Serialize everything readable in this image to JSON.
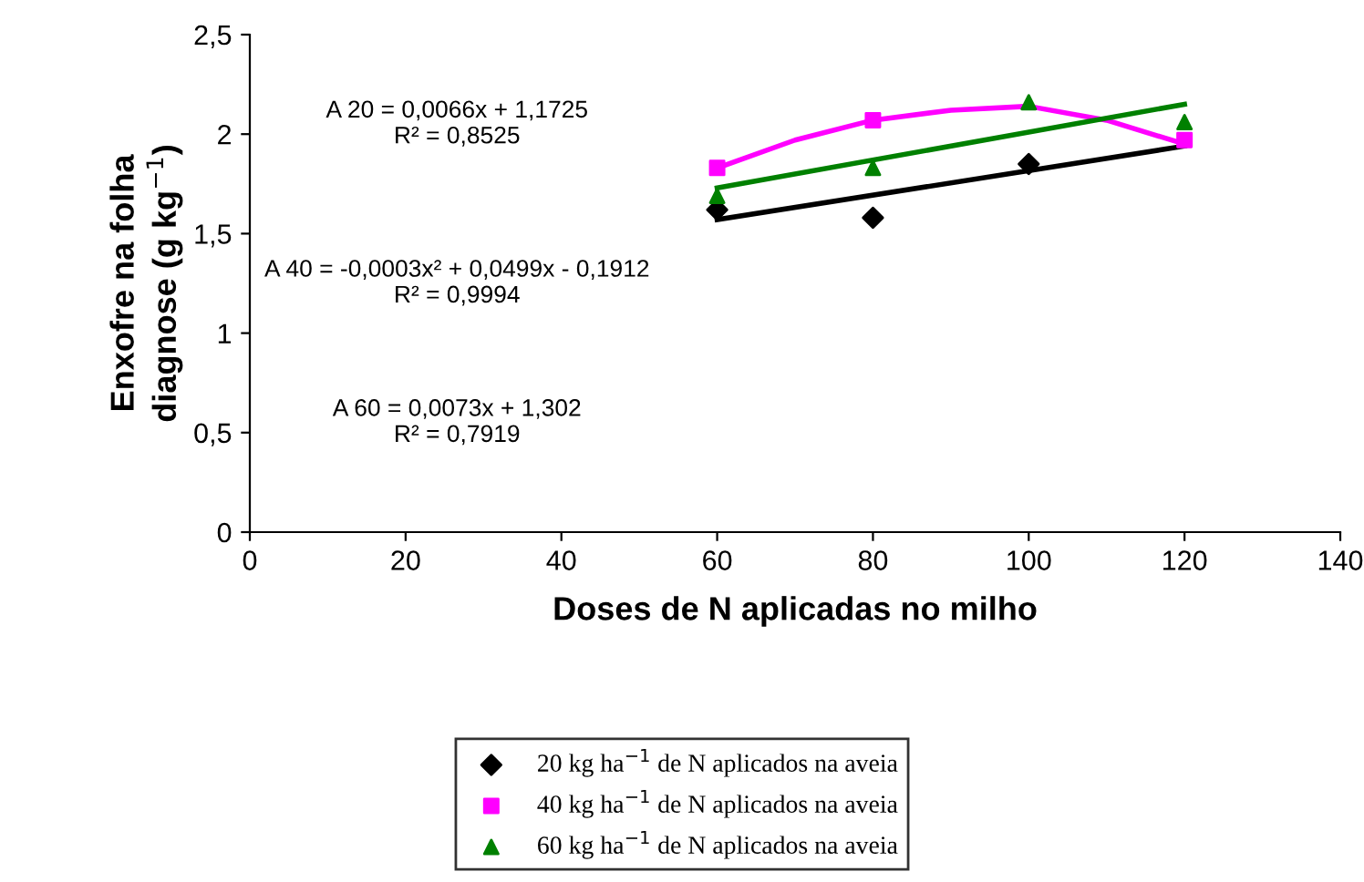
{
  "chart_data": {
    "type": "scatter",
    "xlabel": "Doses de N aplicadas no milho",
    "ylabel": "Enxofre na folha\ndiagnose (g kg$^{−1}$)",
    "xlim": [
      0,
      140
    ],
    "xticks": [
      0,
      20,
      40,
      60,
      80,
      100,
      120,
      140
    ],
    "ylim": [
      0,
      2.5
    ],
    "yticks": [
      0,
      {
        "value": 0.5,
        "label": "0,5"
      },
      1,
      {
        "value": 1.5,
        "label": "1,5"
      },
      2,
      {
        "value": 2.5,
        "label": "2,5"
      }
    ],
    "grid": false,
    "legend": "bottom",
    "series": [
      {
        "name": "20 kg ha$^{−1}$ de N aplicados na aveia",
        "marker": "diamond",
        "color": "#000000",
        "x": [
          60,
          80,
          100
        ],
        "values": [
          1.62,
          1.58,
          1.85
        ]
      },
      {
        "name": "40 kg ha$^{−1}$ de N aplicados na aveia",
        "marker": "square",
        "color": "#ff00ff",
        "x": [
          60,
          80,
          120
        ],
        "values": [
          1.83,
          2.07,
          1.97
        ]
      },
      {
        "name": "60 kg ha$^{−1}$ de N aplicados na aveia",
        "marker": "triangle",
        "color": "#008000",
        "x": [
          60,
          80,
          100,
          120
        ],
        "values": [
          1.69,
          1.83,
          2.16,
          2.06
        ]
      },
      {
        "type": "line",
        "color": "#000000",
        "x": [
          60,
          120
        ],
        "values": [
          1.57,
          1.94
        ]
      },
      {
        "type": "line",
        "color": "#ff00ff",
        "x": [
          60,
          70,
          80,
          90,
          100,
          110,
          120
        ],
        "values": [
          1.83,
          1.97,
          2.07,
          2.12,
          2.14,
          2.07,
          1.95
        ]
      },
      {
        "type": "line",
        "color": "#008000",
        "x": [
          60,
          120
        ],
        "values": [
          1.73,
          2.15
        ]
      }
    ],
    "annotations": [
      "A 20 = 0,0066x + 1,1725\nR² = 0,8525",
      "A 40 = -0,0003x² + 0,0499x - 0,1912\nR² = 0,9994",
      "A 60 = 0,0073x + 1,302\nR² = 0,7919"
    ]
  }
}
